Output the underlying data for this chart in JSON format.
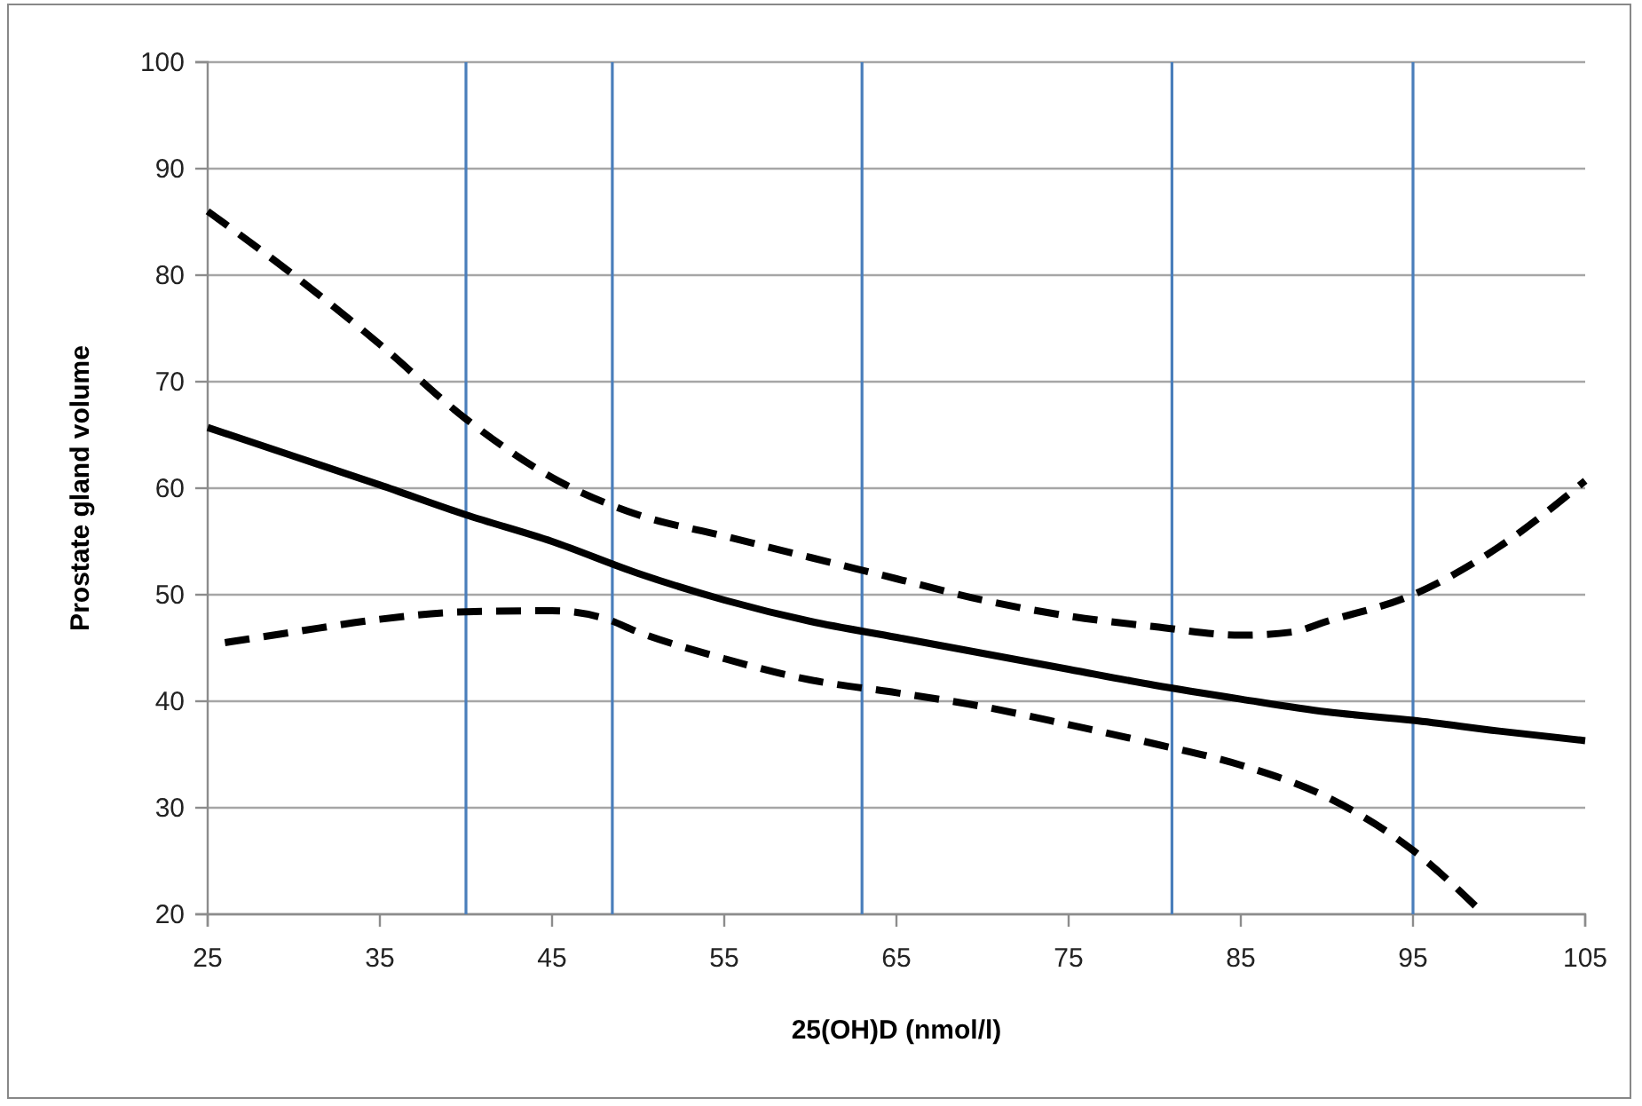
{
  "chart_data": {
    "type": "line",
    "xlabel": "25(OH)D (nmol/l)",
    "ylabel": "Prostate gland volume",
    "xlim": [
      25,
      105
    ],
    "xticks": [
      25,
      35,
      45,
      55,
      65,
      75,
      85,
      95,
      105
    ],
    "ylim": [
      20,
      100
    ],
    "yticks": [
      20,
      30,
      40,
      50,
      60,
      70,
      80,
      90,
      100
    ],
    "grid": "y",
    "marker": "none",
    "series": [
      {
        "color": "#000000",
        "line_style": "solid",
        "x": [
          25,
          30,
          35,
          40,
          45,
          50,
          55,
          60,
          65,
          70,
          75,
          80,
          85,
          90,
          95,
          100,
          105
        ],
        "values": [
          65.7,
          63,
          60.3,
          57.5,
          55,
          52,
          49.5,
          47.5,
          46,
          44.5,
          43,
          41.5,
          40.2,
          39,
          38.2,
          37.2,
          36.3
        ]
      },
      {
        "color": "#000000",
        "line_style": "dashed",
        "x": [
          25,
          30,
          35,
          40,
          45,
          50,
          55,
          60,
          65,
          70,
          75,
          80,
          85,
          88,
          90,
          95,
          100,
          105
        ],
        "values": [
          86,
          80,
          73.5,
          66.5,
          61,
          57.5,
          55.5,
          53.5,
          51.5,
          49.5,
          48,
          47,
          46.2,
          46.5,
          47.5,
          50,
          54.5,
          60.7
        ]
      },
      {
        "color": "#000000",
        "line_style": "dashed",
        "x": [
          26,
          30,
          35,
          40,
          45,
          48,
          50,
          55,
          60,
          65,
          70,
          75,
          80,
          85,
          90,
          95,
          99
        ],
        "values": [
          45.5,
          46.5,
          47.7,
          48.4,
          48.5,
          47.8,
          46.5,
          44,
          42,
          40.8,
          39.5,
          37.8,
          36,
          34,
          31,
          26,
          20.2
        ]
      }
    ],
    "ref_lines": [
      {
        "axis": "x",
        "value": 40,
        "color": "#4a7ebb"
      },
      {
        "axis": "x",
        "value": 48.5,
        "color": "#4a7ebb"
      },
      {
        "axis": "x",
        "value": 63,
        "color": "#4a7ebb"
      },
      {
        "axis": "x",
        "value": 81,
        "color": "#4a7ebb"
      },
      {
        "axis": "x",
        "value": 95,
        "color": "#4a7ebb"
      }
    ]
  }
}
